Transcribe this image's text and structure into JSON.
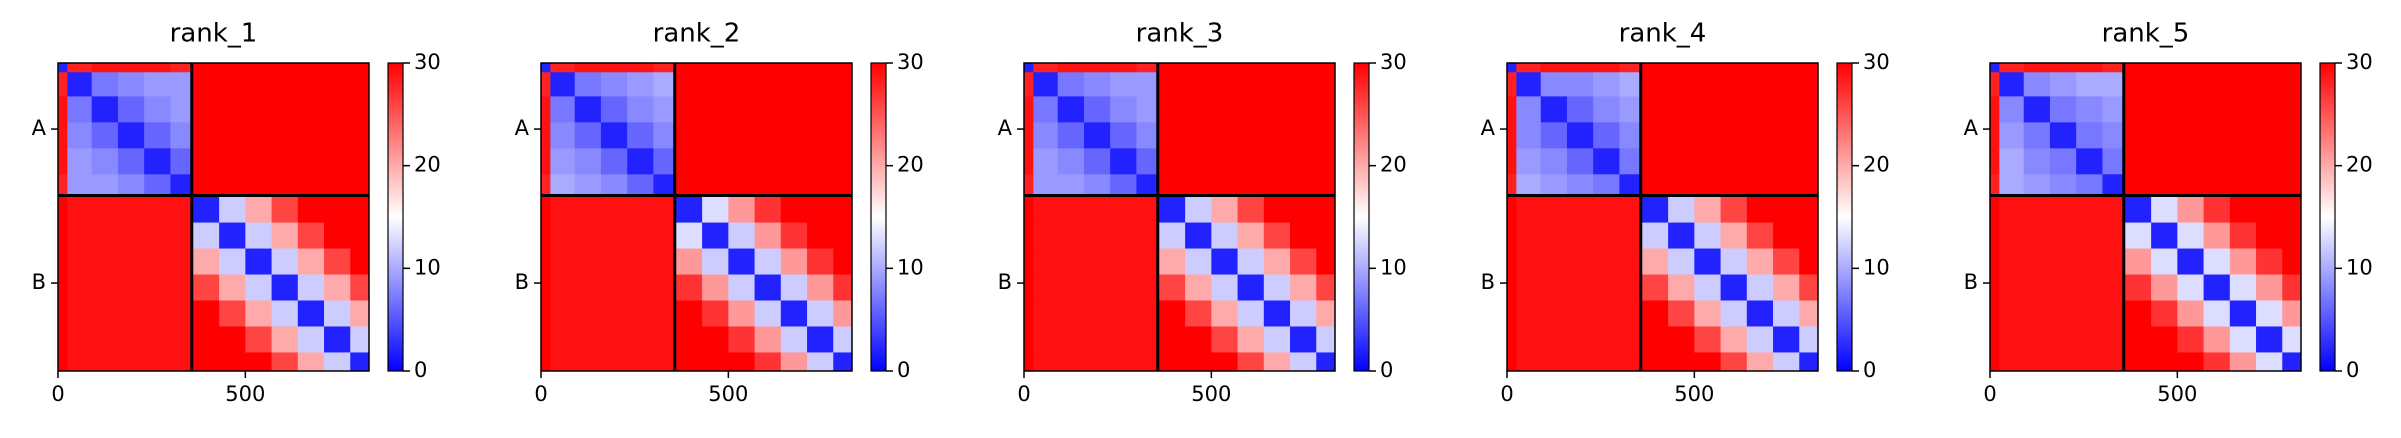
{
  "chart_data": [
    {
      "type": "heatmap",
      "title": "rank_1",
      "x_edges": [
        0,
        25,
        90,
        160,
        230,
        300,
        357,
        430,
        500,
        570,
        640,
        710,
        780,
        830
      ],
      "xlim": [
        0,
        830
      ],
      "ylim": [
        830,
        0
      ],
      "xticks": [
        0,
        500
      ],
      "yticks": [
        {
          "value": 178,
          "label": "A"
        },
        {
          "value": 593,
          "label": "B"
        }
      ],
      "chain_boundaries": [
        357
      ],
      "clim": [
        0,
        30
      ],
      "colorbar_ticks": [
        0,
        10,
        20,
        30
      ],
      "colormap": [
        "#0000ff",
        "#ffffff",
        "#ff0000"
      ],
      "z": [
        [
          2,
          28,
          29,
          29,
          29,
          28,
          30,
          30,
          30,
          30,
          30,
          30,
          30
        ],
        [
          28,
          2,
          7,
          8,
          9,
          9,
          30,
          30,
          30,
          30,
          30,
          30,
          30
        ],
        [
          29,
          7,
          2,
          6,
          8,
          9,
          30,
          30,
          30,
          30,
          30,
          30,
          30
        ],
        [
          29,
          8,
          6,
          2,
          6,
          8,
          30,
          30,
          30,
          30,
          30,
          30,
          30
        ],
        [
          29,
          9,
          8,
          6,
          2,
          6,
          30,
          30,
          30,
          30,
          30,
          30,
          30
        ],
        [
          28,
          9,
          9,
          8,
          6,
          2,
          30,
          30,
          30,
          30,
          30,
          30,
          30
        ],
        [
          30,
          29,
          29,
          29,
          29,
          29,
          2,
          12,
          20,
          26,
          30,
          30,
          30
        ],
        [
          30,
          29,
          29,
          29,
          29,
          29,
          12,
          2,
          12,
          20,
          26,
          30,
          30
        ],
        [
          30,
          29,
          29,
          29,
          29,
          29,
          20,
          12,
          2,
          12,
          20,
          26,
          30
        ],
        [
          30,
          29,
          29,
          29,
          29,
          29,
          26,
          20,
          12,
          2,
          12,
          20,
          26
        ],
        [
          30,
          29,
          29,
          29,
          29,
          29,
          30,
          26,
          20,
          12,
          2,
          12,
          20
        ],
        [
          30,
          29,
          29,
          29,
          29,
          29,
          30,
          30,
          26,
          20,
          12,
          2,
          12
        ],
        [
          30,
          29,
          29,
          29,
          29,
          29,
          30,
          30,
          30,
          26,
          20,
          12,
          2
        ]
      ]
    },
    {
      "type": "heatmap",
      "title": "rank_2",
      "x_edges": [
        0,
        25,
        90,
        160,
        230,
        300,
        357,
        430,
        500,
        570,
        640,
        710,
        780,
        830
      ],
      "xlim": [
        0,
        830
      ],
      "ylim": [
        830,
        0
      ],
      "xticks": [
        0,
        500
      ],
      "yticks": [
        {
          "value": 178,
          "label": "A"
        },
        {
          "value": 593,
          "label": "B"
        }
      ],
      "chain_boundaries": [
        357
      ],
      "clim": [
        0,
        30
      ],
      "colorbar_ticks": [
        0,
        10,
        20,
        30
      ],
      "colormap": [
        "#0000ff",
        "#ffffff",
        "#ff0000"
      ],
      "z": [
        [
          2,
          28,
          29,
          29,
          29,
          28,
          30,
          30,
          30,
          30,
          30,
          30,
          30
        ],
        [
          28,
          2,
          7,
          8,
          9,
          10,
          30,
          30,
          30,
          30,
          30,
          30,
          30
        ],
        [
          29,
          7,
          2,
          6,
          8,
          9,
          30,
          30,
          30,
          30,
          30,
          30,
          30
        ],
        [
          29,
          8,
          6,
          2,
          6,
          8,
          30,
          30,
          30,
          30,
          30,
          30,
          30
        ],
        [
          29,
          9,
          8,
          6,
          2,
          6,
          30,
          30,
          30,
          30,
          30,
          30,
          30
        ],
        [
          28,
          10,
          9,
          8,
          6,
          2,
          30,
          30,
          30,
          30,
          30,
          30,
          30
        ],
        [
          30,
          29,
          29,
          29,
          29,
          29,
          2,
          13,
          21,
          27,
          30,
          30,
          30
        ],
        [
          30,
          29,
          29,
          29,
          29,
          29,
          13,
          2,
          12,
          21,
          27,
          30,
          30
        ],
        [
          30,
          29,
          29,
          29,
          29,
          29,
          21,
          12,
          2,
          12,
          21,
          27,
          30
        ],
        [
          30,
          29,
          29,
          29,
          29,
          29,
          27,
          21,
          12,
          2,
          12,
          21,
          27
        ],
        [
          30,
          29,
          29,
          29,
          29,
          29,
          30,
          27,
          21,
          12,
          2,
          12,
          21
        ],
        [
          30,
          29,
          29,
          29,
          29,
          29,
          30,
          30,
          27,
          21,
          12,
          2,
          12
        ],
        [
          30,
          29,
          29,
          29,
          29,
          29,
          30,
          30,
          30,
          27,
          21,
          12,
          2
        ]
      ]
    },
    {
      "type": "heatmap",
      "title": "rank_3",
      "x_edges": [
        0,
        25,
        90,
        160,
        230,
        300,
        357,
        430,
        500,
        570,
        640,
        710,
        780,
        830
      ],
      "xlim": [
        0,
        830
      ],
      "ylim": [
        830,
        0
      ],
      "xticks": [
        0,
        500
      ],
      "yticks": [
        {
          "value": 178,
          "label": "A"
        },
        {
          "value": 593,
          "label": "B"
        }
      ],
      "chain_boundaries": [
        357
      ],
      "clim": [
        0,
        30
      ],
      "colorbar_ticks": [
        0,
        10,
        20,
        30
      ],
      "colormap": [
        "#0000ff",
        "#ffffff",
        "#ff0000"
      ],
      "z": [
        [
          2,
          28,
          29,
          29,
          29,
          28,
          30,
          30,
          30,
          30,
          30,
          30,
          30
        ],
        [
          28,
          2,
          7,
          8,
          9,
          9,
          30,
          30,
          30,
          30,
          30,
          30,
          30
        ],
        [
          29,
          7,
          2,
          6,
          8,
          9,
          30,
          30,
          30,
          30,
          30,
          30,
          30
        ],
        [
          29,
          8,
          6,
          2,
          6,
          8,
          30,
          30,
          30,
          30,
          30,
          30,
          30
        ],
        [
          29,
          9,
          8,
          6,
          2,
          6,
          30,
          30,
          30,
          30,
          30,
          30,
          30
        ],
        [
          28,
          9,
          9,
          8,
          6,
          2,
          30,
          30,
          30,
          30,
          30,
          30,
          30
        ],
        [
          30,
          29,
          29,
          29,
          29,
          29,
          2,
          12,
          20,
          26,
          30,
          30,
          30
        ],
        [
          30,
          29,
          29,
          29,
          29,
          29,
          12,
          2,
          12,
          20,
          26,
          30,
          30
        ],
        [
          30,
          29,
          29,
          29,
          29,
          29,
          20,
          12,
          2,
          12,
          20,
          26,
          30
        ],
        [
          30,
          29,
          29,
          29,
          29,
          29,
          26,
          20,
          12,
          2,
          12,
          20,
          26
        ],
        [
          30,
          29,
          29,
          29,
          29,
          29,
          30,
          26,
          20,
          12,
          2,
          12,
          20
        ],
        [
          30,
          29,
          29,
          29,
          29,
          29,
          30,
          30,
          26,
          20,
          12,
          2,
          12
        ],
        [
          30,
          29,
          29,
          29,
          29,
          29,
          30,
          30,
          30,
          26,
          20,
          12,
          2
        ]
      ]
    },
    {
      "type": "heatmap",
      "title": "rank_4",
      "x_edges": [
        0,
        25,
        90,
        160,
        230,
        300,
        357,
        430,
        500,
        570,
        640,
        710,
        780,
        830
      ],
      "xlim": [
        0,
        830
      ],
      "ylim": [
        830,
        0
      ],
      "xticks": [
        0,
        500
      ],
      "yticks": [
        {
          "value": 178,
          "label": "A"
        },
        {
          "value": 593,
          "label": "B"
        }
      ],
      "chain_boundaries": [
        357
      ],
      "clim": [
        0,
        30
      ],
      "colorbar_ticks": [
        0,
        10,
        20,
        30
      ],
      "colormap": [
        "#0000ff",
        "#ffffff",
        "#ff0000"
      ],
      "z": [
        [
          2,
          28,
          29,
          29,
          29,
          28,
          30,
          30,
          30,
          30,
          30,
          30,
          30
        ],
        [
          28,
          2,
          8,
          8,
          9,
          10,
          30,
          30,
          30,
          30,
          30,
          30,
          30
        ],
        [
          29,
          8,
          2,
          6,
          8,
          9,
          30,
          30,
          30,
          30,
          30,
          30,
          30
        ],
        [
          29,
          8,
          6,
          2,
          6,
          8,
          30,
          30,
          30,
          30,
          30,
          30,
          30
        ],
        [
          29,
          9,
          8,
          6,
          2,
          7,
          30,
          30,
          30,
          30,
          30,
          30,
          30
        ],
        [
          28,
          10,
          9,
          8,
          7,
          2,
          30,
          30,
          30,
          30,
          30,
          30,
          30
        ],
        [
          30,
          29,
          29,
          29,
          29,
          29,
          2,
          12,
          20,
          26,
          30,
          30,
          30
        ],
        [
          30,
          29,
          29,
          29,
          29,
          29,
          12,
          2,
          12,
          20,
          26,
          30,
          30
        ],
        [
          30,
          29,
          29,
          29,
          29,
          29,
          20,
          12,
          2,
          12,
          20,
          26,
          30
        ],
        [
          30,
          29,
          29,
          29,
          29,
          29,
          26,
          20,
          12,
          2,
          12,
          20,
          26
        ],
        [
          30,
          29,
          29,
          29,
          29,
          29,
          30,
          26,
          20,
          12,
          2,
          12,
          20
        ],
        [
          30,
          29,
          29,
          29,
          29,
          29,
          30,
          30,
          26,
          20,
          12,
          2,
          12
        ],
        [
          30,
          29,
          29,
          29,
          29,
          29,
          30,
          30,
          30,
          26,
          20,
          12,
          2
        ]
      ]
    },
    {
      "type": "heatmap",
      "title": "rank_5",
      "x_edges": [
        0,
        25,
        90,
        160,
        230,
        300,
        357,
        430,
        500,
        570,
        640,
        710,
        780,
        830
      ],
      "xlim": [
        0,
        830
      ],
      "ylim": [
        830,
        0
      ],
      "xticks": [
        0,
        500
      ],
      "yticks": [
        {
          "value": 178,
          "label": "A"
        },
        {
          "value": 593,
          "label": "B"
        }
      ],
      "chain_boundaries": [
        357
      ],
      "clim": [
        0,
        30
      ],
      "colorbar_ticks": [
        0,
        10,
        20,
        30
      ],
      "colormap": [
        "#0000ff",
        "#ffffff",
        "#ff0000"
      ],
      "z": [
        [
          2,
          28,
          29,
          29,
          29,
          28,
          30,
          30,
          30,
          30,
          30,
          30,
          30
        ],
        [
          28,
          2,
          8,
          9,
          10,
          10,
          30,
          30,
          30,
          30,
          30,
          30,
          30
        ],
        [
          29,
          8,
          2,
          7,
          8,
          9,
          30,
          30,
          30,
          30,
          30,
          30,
          30
        ],
        [
          29,
          9,
          7,
          2,
          7,
          8,
          30,
          30,
          30,
          30,
          30,
          30,
          30
        ],
        [
          29,
          10,
          8,
          7,
          2,
          7,
          30,
          30,
          30,
          30,
          30,
          30,
          30
        ],
        [
          28,
          10,
          9,
          8,
          7,
          2,
          30,
          30,
          30,
          30,
          30,
          30,
          30
        ],
        [
          30,
          29,
          29,
          29,
          29,
          29,
          2,
          13,
          21,
          27,
          30,
          30,
          30
        ],
        [
          30,
          29,
          29,
          29,
          29,
          29,
          13,
          2,
          13,
          21,
          27,
          30,
          30
        ],
        [
          30,
          29,
          29,
          29,
          29,
          29,
          21,
          13,
          2,
          13,
          21,
          27,
          30
        ],
        [
          30,
          29,
          29,
          29,
          29,
          29,
          27,
          21,
          13,
          2,
          13,
          21,
          27
        ],
        [
          30,
          29,
          29,
          29,
          29,
          29,
          30,
          27,
          21,
          13,
          2,
          13,
          21
        ],
        [
          30,
          29,
          29,
          29,
          29,
          29,
          30,
          30,
          27,
          21,
          13,
          2,
          13
        ],
        [
          30,
          29,
          29,
          29,
          29,
          29,
          30,
          30,
          30,
          27,
          21,
          13,
          2
        ]
      ]
    }
  ]
}
